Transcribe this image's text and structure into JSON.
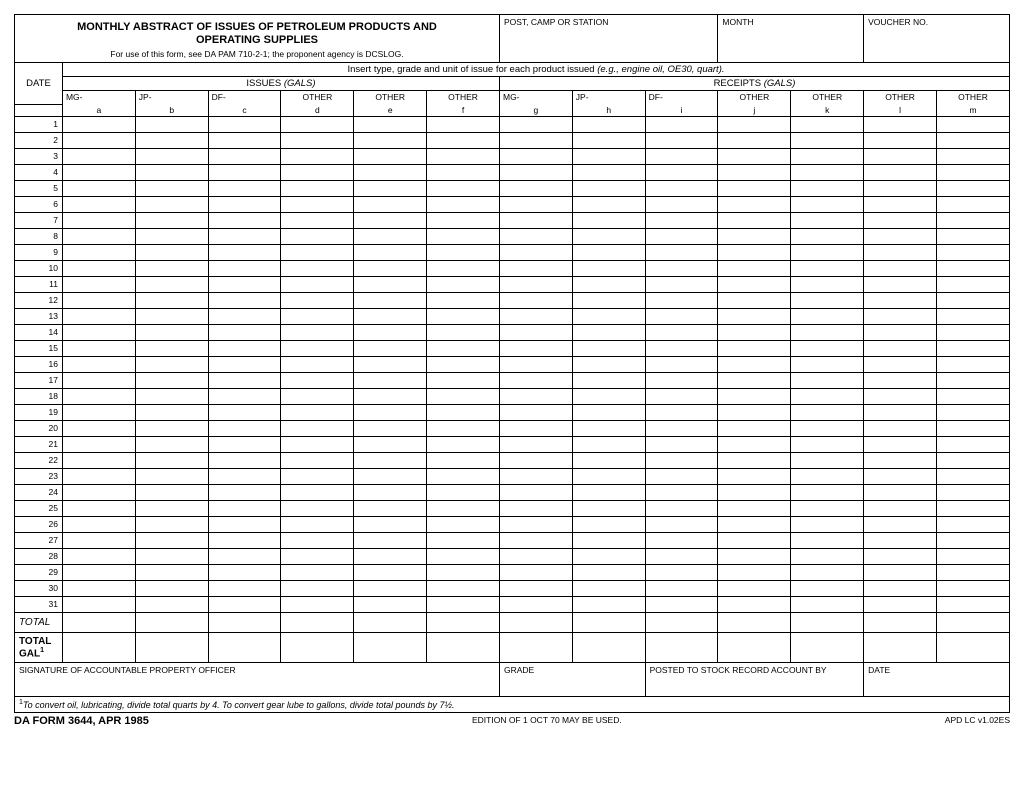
{
  "header": {
    "title_line1": "MONTHLY ABSTRACT OF ISSUES OF PETROLEUM PRODUCTS AND",
    "title_line2": "OPERATING SUPPLIES",
    "subtitle": "For use of this form, see DA PAM 710-2-1; the proponent agency is DCSLOG.",
    "post_label": "POST, CAMP OR STATION",
    "month_label": "MONTH",
    "voucher_label": "VOUCHER NO."
  },
  "instruction": {
    "prefix": "Insert type, grade and unit of issue for each product issued ",
    "example": "(e.g., engine oil, OE30, quart)."
  },
  "table": {
    "date_label": "DATE",
    "issues_label": "ISSUES",
    "issues_unit": "(GALS)",
    "receipts_label": "RECEIPTS",
    "receipts_unit": "(GALS)",
    "columns": [
      {
        "top": "MG-",
        "bot": "a"
      },
      {
        "top": "JP-",
        "bot": "b"
      },
      {
        "top": "DF-",
        "bot": "c"
      },
      {
        "top": "OTHER",
        "bot": "d"
      },
      {
        "top": "OTHER",
        "bot": "e"
      },
      {
        "top": "OTHER",
        "bot": "f"
      },
      {
        "top": "MG-",
        "bot": "g"
      },
      {
        "top": "JP-",
        "bot": "h"
      },
      {
        "top": "DF-",
        "bot": "i"
      },
      {
        "top": "OTHER",
        "bot": "j"
      },
      {
        "top": "OTHER",
        "bot": "k"
      },
      {
        "top": "OTHER",
        "bot": "l"
      },
      {
        "top": "OTHER",
        "bot": "m"
      }
    ],
    "days": [
      "1",
      "2",
      "3",
      "4",
      "5",
      "6",
      "7",
      "8",
      "9",
      "10",
      "11",
      "12",
      "13",
      "14",
      "15",
      "16",
      "17",
      "18",
      "19",
      "20",
      "21",
      "22",
      "23",
      "24",
      "25",
      "26",
      "27",
      "28",
      "29",
      "30",
      "31"
    ],
    "total_label": "TOTAL",
    "total_gal_label_1": "TOTAL",
    "total_gal_label_2": "GAL",
    "total_gal_sup": "1"
  },
  "signature": {
    "officer": "SIGNATURE OF ACCOUNTABLE PROPERTY OFFICER",
    "grade": "GRADE",
    "posted": "POSTED TO STOCK RECORD ACCOUNT BY",
    "date": "DATE"
  },
  "footnote": {
    "sup": "1",
    "text": "To convert oil, lubricating, divide total quarts by 4.  To convert gear lube to gallons, divide total pounds by 7½."
  },
  "footer": {
    "left": "DA FORM 3644, APR 1985",
    "mid": "EDITION OF 1 OCT 70 MAY BE USED.",
    "right": "APD LC v1.02ES"
  },
  "layout": {
    "date_col_width": 48,
    "data_col_width": 73,
    "colors": {
      "border": "#000000",
      "bg": "#ffffff",
      "text": "#000000"
    }
  }
}
